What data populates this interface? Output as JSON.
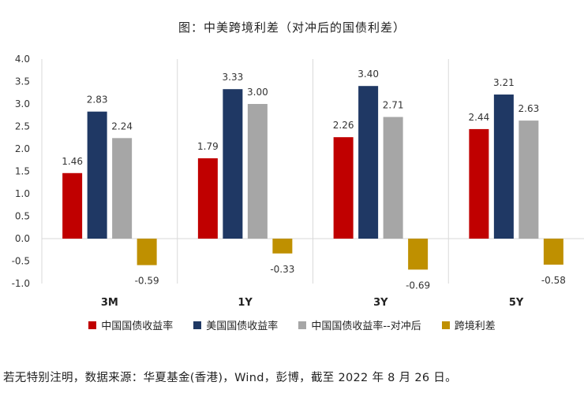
{
  "chart_data": {
    "type": "bar",
    "title": "图：中美跨境利差（对冲后的国债利差）",
    "categories": [
      "3M",
      "1Y",
      "3Y",
      "5Y"
    ],
    "series": [
      {
        "name": "中国国债收益率",
        "color": "#C00000",
        "values": [
          1.46,
          1.79,
          2.26,
          2.44
        ],
        "labels": [
          "1.46",
          "1.79",
          "2.26",
          "2.44"
        ]
      },
      {
        "name": "美国国债收益率",
        "color": "#1F3864",
        "values": [
          2.83,
          3.33,
          3.4,
          3.21
        ],
        "labels": [
          "2.83",
          "3.33",
          "3.40",
          "3.21"
        ]
      },
      {
        "name": "中国国债收益率--对冲后",
        "color": "#A6A6A6",
        "values": [
          2.24,
          3.0,
          2.71,
          2.63
        ],
        "labels": [
          "2.24",
          "3.00",
          "2.71",
          "2.63"
        ]
      },
      {
        "name": "跨境利差",
        "color": "#BF9000",
        "values": [
          -0.59,
          -0.33,
          -0.69,
          -0.58
        ],
        "labels": [
          "-0.59",
          "-0.33",
          "-0.69",
          "-0.58"
        ]
      }
    ],
    "ylim": [
      -1.0,
      4.0
    ],
    "yticks": [
      -1.0,
      -0.5,
      0.0,
      0.5,
      1.0,
      1.5,
      2.0,
      2.5,
      3.0,
      3.5,
      4.0
    ],
    "ytick_labels": [
      "-1.0",
      "-0.5",
      "0.0",
      "0.5",
      "1.0",
      "1.5",
      "2.0",
      "2.5",
      "3.0",
      "3.5",
      "4.0"
    ],
    "xlabel": "",
    "ylabel": "",
    "legend_position": "bottom"
  },
  "source_note": "若无特别注明，数据来源：华夏基金(香港)，Wind，彭博，截至 2022 年 8 月 26 日。"
}
